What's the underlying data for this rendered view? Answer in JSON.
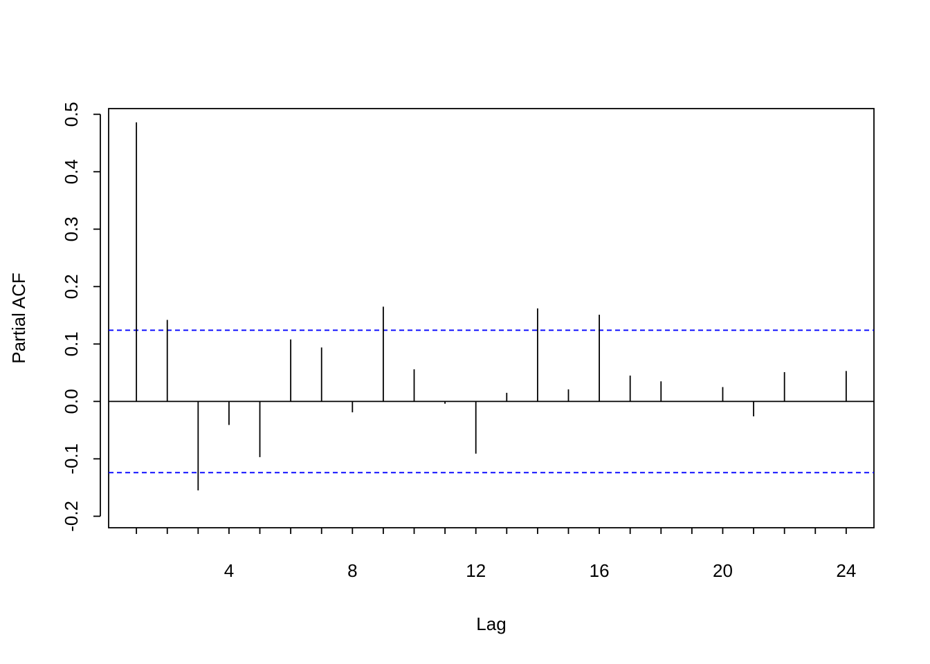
{
  "chart_data": {
    "type": "bar",
    "subtype": "pacf-spikes",
    "title": "",
    "xlabel": "Lag",
    "ylabel": "Partial ACF",
    "xlim": [
      0.1,
      24.9
    ],
    "ylim": [
      -0.22,
      0.51
    ],
    "x_ticks_labeled": [
      4,
      8,
      12,
      16,
      20,
      24
    ],
    "x_ticks_minor": [
      1,
      2,
      3,
      5,
      6,
      7,
      9,
      10,
      11,
      13,
      14,
      15,
      17,
      18,
      19,
      21,
      22,
      23
    ],
    "y_ticks": [
      -0.2,
      -0.1,
      0.0,
      0.1,
      0.2,
      0.3,
      0.4,
      0.5
    ],
    "y_tick_labels": [
      "-0.2",
      "-0.1",
      "0.0",
      "0.1",
      "0.2",
      "0.3",
      "0.4",
      "0.5"
    ],
    "x_tick_labels": [
      "4",
      "8",
      "12",
      "16",
      "20",
      "24"
    ],
    "lags": [
      1,
      2,
      3,
      4,
      5,
      6,
      7,
      8,
      9,
      10,
      11,
      12,
      13,
      14,
      15,
      16,
      17,
      18,
      19,
      20,
      21,
      22,
      23,
      24
    ],
    "values": [
      0.486,
      0.142,
      -0.155,
      -0.041,
      -0.097,
      0.108,
      0.094,
      -0.019,
      0.165,
      0.056,
      -0.004,
      -0.091,
      0.015,
      0.162,
      0.021,
      0.151,
      0.045,
      0.035,
      0.0,
      0.025,
      -0.026,
      0.051,
      0.0,
      0.053
    ],
    "confidence_band": [
      -0.124,
      0.124
    ],
    "grid": false,
    "colors": {
      "spike": "#000000",
      "zero_line": "#000000",
      "confidence_band": "#0000ff",
      "frame": "#000000"
    }
  }
}
